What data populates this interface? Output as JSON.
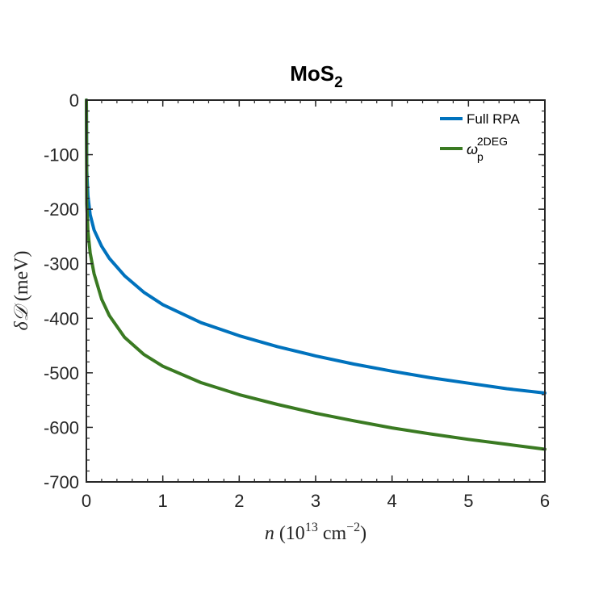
{
  "chart_data": {
    "type": "line",
    "title": {
      "main": "MoS",
      "sub": "2"
    },
    "xlabel": {
      "var": "n",
      "open": " (10",
      "sup1": "13",
      "mid": " cm",
      "sup2": "−2",
      "close": ")"
    },
    "ylabel": {
      "var": "δ𝒟",
      "rest": " (meV)"
    },
    "xlim": [
      0,
      6
    ],
    "ylim": [
      -700,
      0
    ],
    "xticks": [
      0,
      1,
      2,
      3,
      4,
      5,
      6
    ],
    "yticks": [
      0,
      -100,
      -200,
      -300,
      -400,
      -500,
      -600,
      -700
    ],
    "grid": false,
    "legend_position": "top-right",
    "series": [
      {
        "name": "Full RPA",
        "color": "#0072BD",
        "x": [
          0,
          0.005,
          0.02,
          0.05,
          0.1,
          0.2,
          0.3,
          0.5,
          0.75,
          1,
          1.5,
          2,
          2.5,
          3,
          3.5,
          4,
          4.5,
          5,
          5.5,
          6
        ],
        "y": [
          0,
          -130,
          -175,
          -210,
          -238,
          -268,
          -290,
          -322,
          -352,
          -375,
          -408,
          -432,
          -452,
          -469,
          -484,
          -497,
          -509,
          -519,
          -529,
          -537
        ]
      },
      {
        "name": "ω_p^2DEG",
        "label_base": "ω",
        "label_sub": "p",
        "label_sup": "2DEG",
        "color": "#3A7A22",
        "x": [
          0,
          0.005,
          0.02,
          0.05,
          0.1,
          0.2,
          0.3,
          0.5,
          0.75,
          1,
          1.5,
          2,
          2.5,
          3,
          3.5,
          4,
          4.5,
          5,
          5.5,
          6
        ],
        "y": [
          0,
          -190,
          -240,
          -280,
          -318,
          -365,
          -395,
          -435,
          -466,
          -488,
          -518,
          -540,
          -558,
          -574,
          -588,
          -601,
          -612,
          -622,
          -631,
          -640
        ]
      }
    ]
  }
}
